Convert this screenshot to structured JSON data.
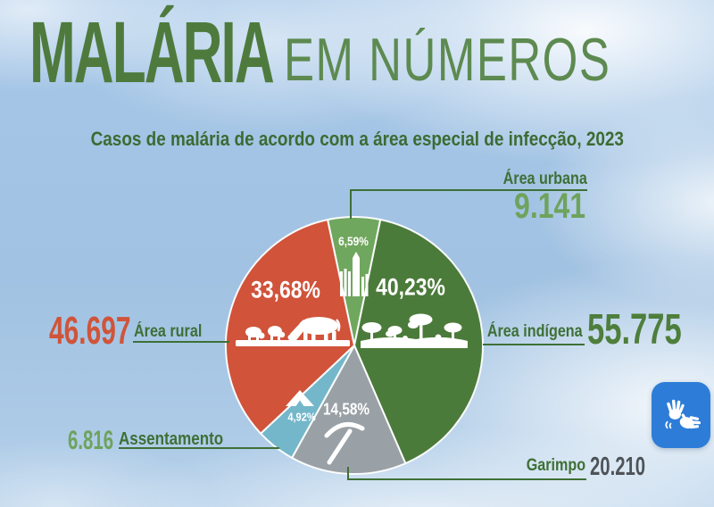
{
  "header": {
    "title_bold": "MALÁRIA",
    "title_light": "EM NÚMEROS"
  },
  "chart_data": {
    "type": "pie",
    "title": "Casos de malária de acordo com a área especial de infecção, 2023",
    "year": "2023",
    "start_angle_deg": -12,
    "legend_position": "callouts-around-pie",
    "slices": [
      {
        "label": "Área urbana",
        "value": 9141,
        "value_label": "9.141",
        "pct": 6.59,
        "pct_label": "6,59%",
        "color": "#70a75e",
        "icon": "buildings-icon"
      },
      {
        "label": "Área indígena",
        "value": 55775,
        "value_label": "55.775",
        "pct": 40.23,
        "pct_label": "40,23%",
        "color": "#4b7b3a",
        "icon": "trees-icon"
      },
      {
        "label": "Garimpo",
        "value": 20210,
        "value_label": "20.210",
        "pct": 14.58,
        "pct_label": "14,58%",
        "color": "#9aa1a6",
        "icon": "pickaxe-icon"
      },
      {
        "label": "Assentamento",
        "value": 6816,
        "value_label": "6.816",
        "pct": 4.92,
        "pct_label": "4,92%",
        "color": "#74b7ca",
        "icon": "tent-icon"
      },
      {
        "label": "Área rural",
        "value": 46697,
        "value_label": "46.697",
        "pct": 33.68,
        "pct_label": "33,68%",
        "color": "#d0533a",
        "icon": "cattle-icon"
      }
    ]
  },
  "colors": {
    "title_green": "#4e7b3d",
    "label_green": "#3e7036",
    "light_number_green": "#6ea35c",
    "dark_number_green": "#4e7e3c",
    "rural_orange": "#d0543a",
    "garimpo_gray": "#4d5358",
    "connector_green": "#3e7036",
    "sky_blue": "#a4c4e4",
    "libras_blue": "#2d7dd8"
  },
  "widgets": {
    "libras_button_label": "Libras (sign language) accessibility widget"
  }
}
